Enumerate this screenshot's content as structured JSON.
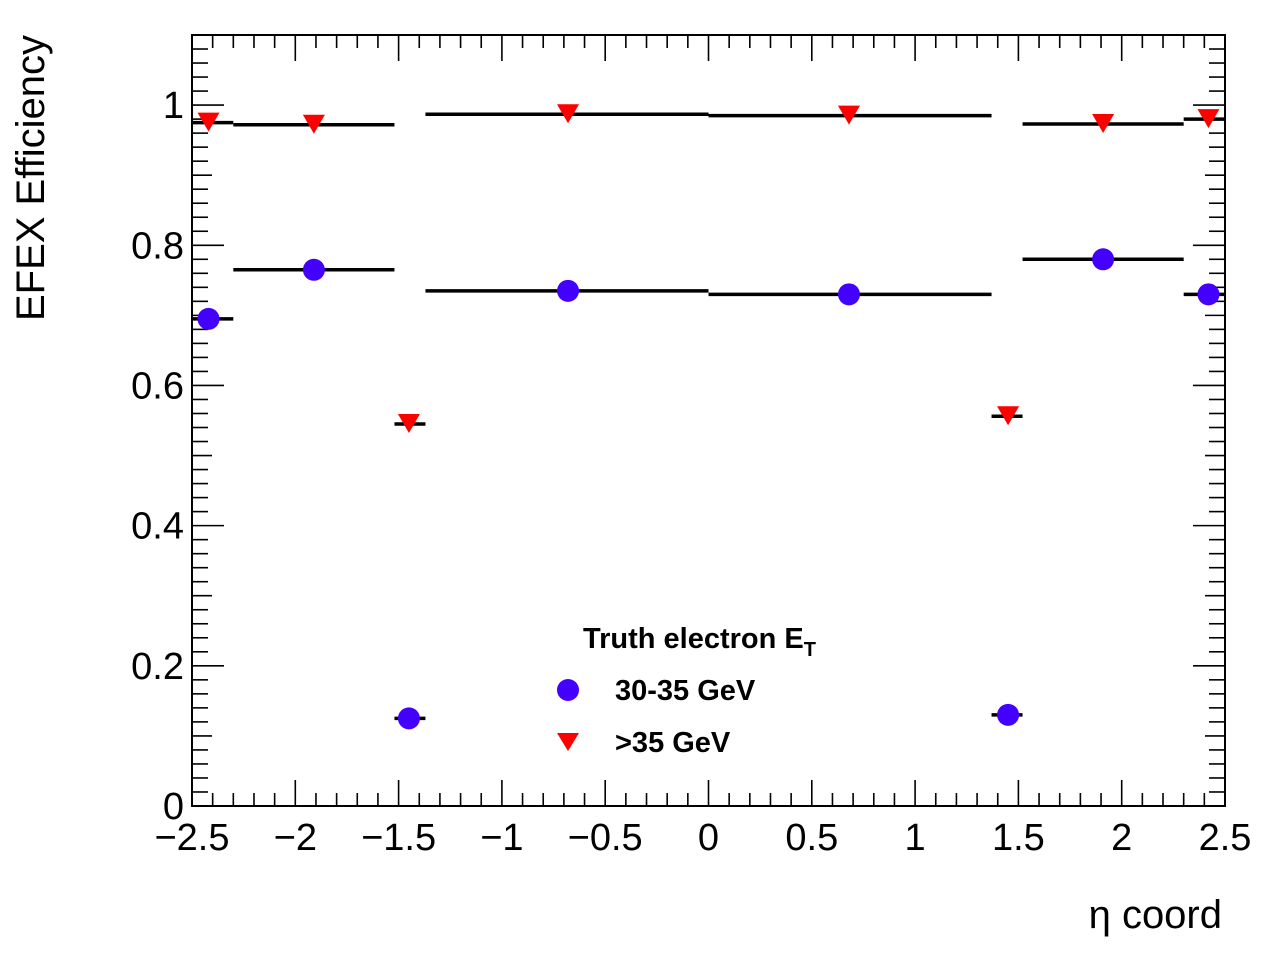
{
  "chart_data": {
    "type": "scatter",
    "title": "",
    "xlabel": "η coord",
    "ylabel": "EFEX Efficiency",
    "xlim": [
      -2.5,
      2.5
    ],
    "ylim": [
      0,
      1.1
    ],
    "xticks": [
      -2.5,
      -2,
      -1.5,
      -1,
      -0.5,
      0,
      0.5,
      1,
      1.5,
      2,
      2.5
    ],
    "xtick_labels": [
      "−2.5",
      "−2",
      "−1.5",
      "−1",
      "−0.5",
      "0",
      "0.5",
      "1",
      "1.5",
      "2",
      "2.5"
    ],
    "yticks": [
      0,
      0.2,
      0.4,
      0.6,
      0.8,
      1
    ],
    "ytick_labels": [
      "0",
      "0.2",
      "0.4",
      "0.6",
      "0.8",
      "1"
    ],
    "grid": false,
    "legend": {
      "position": "bottom-center",
      "title_main": "Truth electron E",
      "title_sub": "T"
    },
    "bins": [
      {
        "low": -2.5,
        "high": -2.3
      },
      {
        "low": -2.3,
        "high": -1.52
      },
      {
        "low": -1.52,
        "high": -1.37
      },
      {
        "low": -1.37,
        "high": 0.0
      },
      {
        "low": 0.0,
        "high": 1.37
      },
      {
        "low": 1.37,
        "high": 1.52
      },
      {
        "low": 1.52,
        "high": 2.3
      },
      {
        "low": 2.3,
        "high": 2.5
      }
    ],
    "series": [
      {
        "name": "30-35 GeV",
        "marker": "circle",
        "color": "#4400ff",
        "x": [
          -2.42,
          -1.91,
          -1.45,
          -0.68,
          0.68,
          1.45,
          1.91,
          2.42
        ],
        "y": [
          0.695,
          0.765,
          0.125,
          0.735,
          0.73,
          0.13,
          0.78,
          0.73
        ]
      },
      {
        "name": ">35 GeV",
        "marker": "triangle-down",
        "color": "#ff0000",
        "x": [
          -2.42,
          -1.91,
          -1.45,
          -0.68,
          0.68,
          1.45,
          1.91,
          2.42
        ],
        "y": [
          0.975,
          0.972,
          0.545,
          0.987,
          0.985,
          0.556,
          0.973,
          0.98
        ]
      }
    ]
  }
}
